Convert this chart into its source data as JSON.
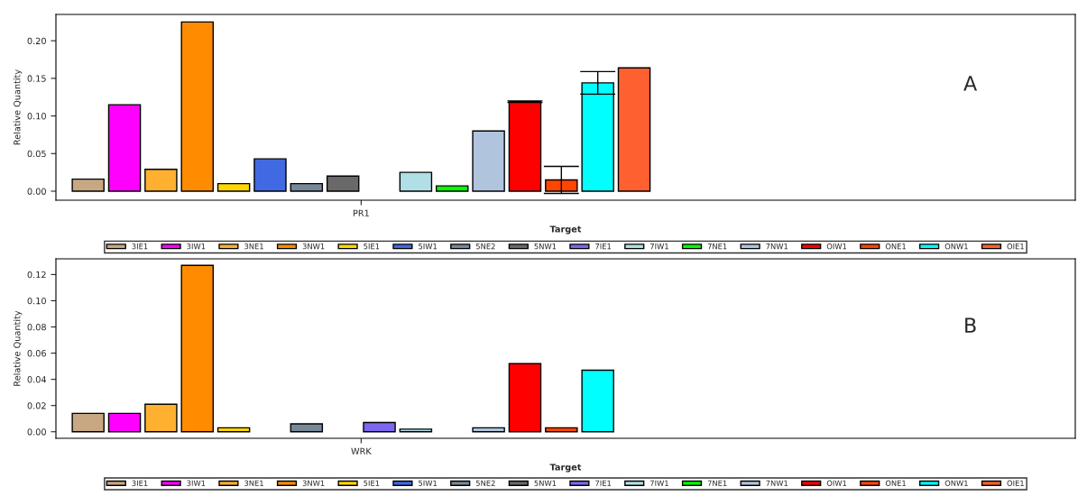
{
  "chart_data": [
    {
      "type": "bar",
      "categories": [
        "PR1"
      ],
      "xlabel": "Target",
      "ylabel": "Relative Quantity",
      "annotations": [
        "A"
      ],
      "ylim": [
        -0.012,
        0.235
      ],
      "yticks": [
        {
          "value": 0,
          "label": "0.00"
        },
        {
          "value": 0.05,
          "label": "0.05"
        },
        {
          "value": 0.1,
          "label": "0.10"
        },
        {
          "value": 0.15,
          "label": "0.15"
        },
        {
          "value": 0.2,
          "label": "0.20"
        }
      ],
      "legend": "bottom",
      "grid": false,
      "series": [
        {
          "name": "3IE1",
          "color": "#c8a882",
          "values": [
            0.016
          ]
        },
        {
          "name": "3IW1",
          "color": "#ff00ff",
          "values": [
            0.115
          ]
        },
        {
          "name": "3NE1",
          "color": "#ffb030",
          "values": [
            0.029
          ]
        },
        {
          "name": "3NW1",
          "color": "#ff8c00",
          "values": [
            0.225
          ]
        },
        {
          "name": "5IE1",
          "color": "#ffd700",
          "values": [
            0.01
          ]
        },
        {
          "name": "5IW1",
          "color": "#4169e1",
          "values": [
            0.043
          ]
        },
        {
          "name": "5NE2",
          "color": "#778899",
          "values": [
            0.01
          ]
        },
        {
          "name": "5NW1",
          "color": "#696969",
          "values": [
            0.02
          ]
        },
        {
          "name": "7IE1",
          "color": "#7b68ee",
          "values": [
            null
          ]
        },
        {
          "name": "7IW1",
          "color": "#b0e0e6",
          "values": [
            0.025
          ]
        },
        {
          "name": "7NE1",
          "color": "#00ff00",
          "values": [
            0.007
          ]
        },
        {
          "name": "7NW1",
          "color": "#b0c4de",
          "values": [
            0.08
          ]
        },
        {
          "name": "OIW1",
          "color": "#ff0000",
          "values": [
            0.119
          ],
          "errors": [
            0.001
          ]
        },
        {
          "name": "ONE1",
          "color": "#ff4500",
          "values": [
            0.015
          ],
          "errors": [
            0.018
          ]
        },
        {
          "name": "ONW1",
          "color": "#00ffff",
          "values": [
            0.144
          ],
          "errors": [
            0.015
          ]
        },
        {
          "name": "OIE1",
          "color": "#ff6030",
          "values": [
            0.164
          ]
        }
      ]
    },
    {
      "type": "bar",
      "categories": [
        "WRK"
      ],
      "xlabel": "Target",
      "ylabel": "Relative Quantity",
      "annotations": [
        "B"
      ],
      "ylim": [
        -0.005,
        0.132
      ],
      "yticks": [
        {
          "value": 0,
          "label": "0.00"
        },
        {
          "value": 0.02,
          "label": "0.02"
        },
        {
          "value": 0.04,
          "label": "0.04"
        },
        {
          "value": 0.06,
          "label": "0.06"
        },
        {
          "value": 0.08,
          "label": "0.08"
        },
        {
          "value": 0.1,
          "label": "0.10"
        },
        {
          "value": 0.12,
          "label": "0.12"
        }
      ],
      "legend": "bottom",
      "grid": false,
      "series": [
        {
          "name": "3IE1",
          "color": "#c8a882",
          "values": [
            0.014
          ]
        },
        {
          "name": "3IW1",
          "color": "#ff00ff",
          "values": [
            0.014
          ]
        },
        {
          "name": "3NE1",
          "color": "#ffb030",
          "values": [
            0.021
          ]
        },
        {
          "name": "3NW1",
          "color": "#ff8c00",
          "values": [
            0.127
          ]
        },
        {
          "name": "5IE1",
          "color": "#ffd700",
          "values": [
            0.003
          ]
        },
        {
          "name": "5IW1",
          "color": "#4169e1",
          "values": [
            null
          ]
        },
        {
          "name": "5NE2",
          "color": "#778899",
          "values": [
            0.006
          ]
        },
        {
          "name": "5NW1",
          "color": "#696969",
          "values": [
            null
          ]
        },
        {
          "name": "7IE1",
          "color": "#7b68ee",
          "values": [
            0.007
          ]
        },
        {
          "name": "7IW1",
          "color": "#b0e0e6",
          "values": [
            0.002
          ]
        },
        {
          "name": "7NE1",
          "color": "#00ff00",
          "values": [
            null
          ]
        },
        {
          "name": "7NW1",
          "color": "#b0c4de",
          "values": [
            0.003
          ]
        },
        {
          "name": "OIW1",
          "color": "#ff0000",
          "values": [
            0.052
          ]
        },
        {
          "name": "ONE1",
          "color": "#ff4500",
          "values": [
            0.003
          ]
        },
        {
          "name": "ONW1",
          "color": "#00ffff",
          "values": [
            0.047
          ]
        },
        {
          "name": "OIE1",
          "color": "#ff6030",
          "values": [
            null
          ]
        }
      ]
    }
  ]
}
